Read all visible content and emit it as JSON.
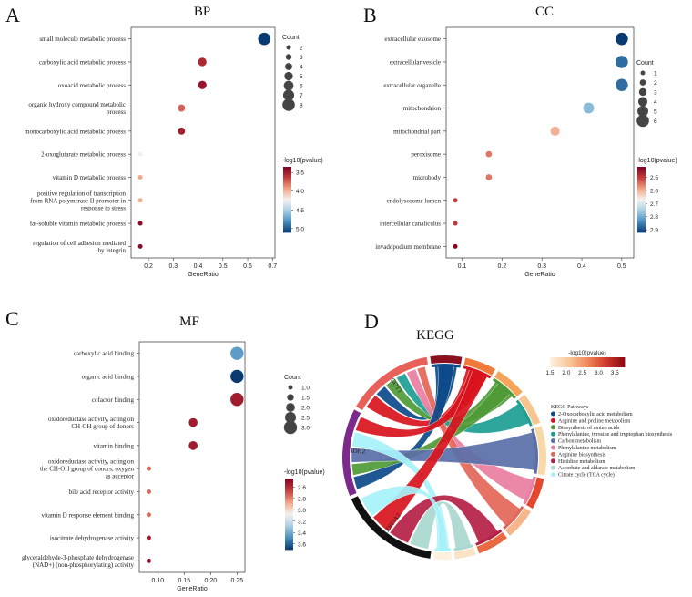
{
  "panels": {
    "A": {
      "letter": "A"
    },
    "B": {
      "letter": "B"
    },
    "C": {
      "letter": "C"
    },
    "D": {
      "letter": "D"
    }
  },
  "chart_data": [
    {
      "id": "BP",
      "type": "scatter",
      "title": "BP",
      "xlabel": "GeneRatio",
      "xlim": [
        0.13,
        0.71
      ],
      "xticks": [
        "0.2",
        "0.3",
        "0.4",
        "0.5",
        "0.6",
        "0.7"
      ],
      "xtick_values": [
        0.2,
        0.3,
        0.4,
        0.5,
        0.6,
        0.7
      ],
      "categories": [
        "small molecule metabolic process",
        "carboxylic acid metabolic process",
        "oxoacid metabolic process",
        [
          "organic hydroxy compound metabolic",
          "process"
        ],
        "monocarboxylic acid metabolic process",
        "2-oxoglutarate metabolic process",
        "vitamin D metabolic process",
        [
          "positive regulation of transcription",
          "from RNA polymerase II promoter in",
          "response to stress"
        ],
        "fat-soluble vitamin metabolic process",
        [
          "regulation of cell adhesion mediated",
          "by integrin"
        ]
      ],
      "x": [
        0.667,
        0.417,
        0.417,
        0.333,
        0.333,
        0.167,
        0.167,
        0.167,
        0.167,
        0.167
      ],
      "count": [
        8,
        5,
        5,
        4,
        4,
        2,
        2,
        2,
        2,
        2
      ],
      "neglog10p": [
        5.1,
        3.55,
        3.45,
        3.75,
        3.5,
        4.25,
        3.95,
        3.95,
        3.4,
        3.4
      ],
      "size_legend": {
        "title": "Count",
        "labels": [
          "2",
          "3",
          "4",
          "5",
          "6",
          "7",
          "8"
        ],
        "values": [
          2,
          3,
          4,
          5,
          6,
          7,
          8
        ]
      },
      "color_legend": {
        "title": "-log10(pvalue)",
        "labels": [
          "3.5",
          "4.0",
          "4.5",
          "5.0"
        ],
        "values": [
          3.5,
          4.0,
          4.5,
          5.0
        ],
        "range": [
          3.35,
          5.1
        ],
        "reversed": true
      }
    },
    {
      "id": "CC",
      "type": "scatter",
      "title": "CC",
      "xlabel": "GeneRatio",
      "xlim": [
        0.06,
        0.53
      ],
      "xticks": [
        "0.1",
        "0.2",
        "0.3",
        "0.4",
        "0.5"
      ],
      "xtick_values": [
        0.1,
        0.2,
        0.3,
        0.4,
        0.5
      ],
      "categories": [
        "extracellular exosome",
        "extracellular vesicle",
        "extracellular organelle",
        "mitochondrion",
        "mitochondrial part",
        "peroxisome",
        "microbody",
        "endolysosome lumen",
        "intercellular canaliculus",
        "invadopodium membrane"
      ],
      "x": [
        0.5,
        0.5,
        0.5,
        0.417,
        0.333,
        0.167,
        0.167,
        0.083,
        0.083,
        0.083
      ],
      "count": [
        6,
        6,
        6,
        5,
        4,
        2,
        2,
        1,
        1,
        1
      ],
      "neglog10p": [
        2.92,
        2.87,
        2.87,
        2.78,
        2.6,
        2.55,
        2.55,
        2.5,
        2.5,
        2.43
      ],
      "size_legend": {
        "title": "Count",
        "labels": [
          "1",
          "2",
          "3",
          "4",
          "5",
          "6"
        ],
        "values": [
          1,
          2,
          3,
          4,
          5,
          6
        ]
      },
      "color_legend": {
        "title": "-log10(pvalue)",
        "labels": [
          "2.5",
          "2.6",
          "2.7",
          "2.8",
          "2.9"
        ],
        "values": [
          2.5,
          2.6,
          2.7,
          2.8,
          2.9
        ],
        "range": [
          2.42,
          2.92
        ],
        "reversed": true
      }
    },
    {
      "id": "MF",
      "type": "scatter",
      "title": "MF",
      "xlabel": "GeneRatio",
      "xlim": [
        0.065,
        0.265
      ],
      "xticks": [
        "0.10",
        "0.15",
        "0.20",
        "0.25"
      ],
      "xtick_values": [
        0.1,
        0.15,
        0.2,
        0.25
      ],
      "categories": [
        "carboxylic acid binding",
        "organic acid binding",
        "cofactor binding",
        [
          "oxidoreductase activity, acting on",
          "CH-OH group of donors"
        ],
        "vitamin binding",
        [
          "oxidoreductase activity, acting on",
          "the CH-OH group of donors, oxygen",
          "as acceptor"
        ],
        "bile acid receptor activity",
        "vitamin D response element binding",
        "isocitrate dehydrogenase activity",
        [
          "glyceraldehyde-3-phosphate dehydrogenase",
          "(NAD+) (non-phosphorylating) activity"
        ]
      ],
      "x": [
        0.25,
        0.25,
        0.25,
        0.167,
        0.167,
        0.083,
        0.083,
        0.083,
        0.083,
        0.083
      ],
      "count": [
        3,
        3,
        3,
        2,
        2,
        1,
        1,
        1,
        1,
        1
      ],
      "neglog10p": [
        3.45,
        3.7,
        2.55,
        2.55,
        2.55,
        2.75,
        2.75,
        2.75,
        2.55,
        2.5
      ],
      "size_legend": {
        "title": "Count",
        "labels": [
          "1.0",
          "1.5",
          "2.0",
          "2.5",
          "3.0"
        ],
        "values": [
          1.0,
          1.5,
          2.0,
          2.5,
          3.0
        ]
      },
      "color_legend": {
        "title": "-log10(pvalue)",
        "labels": [
          "2.6",
          "2.8",
          "3.0",
          "3.2",
          "3.4",
          "3.6"
        ],
        "values": [
          2.6,
          2.8,
          3.0,
          3.2,
          3.4,
          3.6
        ],
        "range": [
          2.45,
          3.7
        ],
        "reversed": true
      }
    },
    {
      "id": "KEGG",
      "type": "chord",
      "title": "KEGG",
      "genes": [
        "GOT1",
        "IDH2",
        "ALDH3A2"
      ],
      "gradient_legend": {
        "title": "-log10(pvalue)",
        "labels": [
          "1.5",
          "2.0",
          "2.5",
          "3.0",
          "3.5"
        ],
        "values": [
          1.5,
          2.0,
          2.5,
          3.0,
          3.5
        ],
        "range": [
          1.5,
          3.8
        ]
      },
      "pathway_legend_title": "KEGG Pathways",
      "pathways": [
        {
          "name": "2-Oxocarboxylic acid metabolism",
          "color": "#0d4a8a"
        },
        {
          "name": "Arginine and proline metabolism",
          "color": "#d8131d"
        },
        {
          "name": "Biosynthesis of amino acids",
          "color": "#4f9a36"
        },
        {
          "name": "Phenylalanine, tyrosine and tryptophan biosynthesis",
          "color": "#1d9e92"
        },
        {
          "name": "Carbon metabolism",
          "color": "#5a6fa8"
        },
        {
          "name": "Phenylalanine metabolism",
          "color": "#e97ea0"
        },
        {
          "name": "Arginine biosynthesis",
          "color": "#e46658"
        },
        {
          "name": "Histidine metabolism",
          "color": "#b51f44"
        },
        {
          "name": "Ascorbate and aldarate metabolism",
          "color": "#a9d8cf"
        },
        {
          "name": "Citrate cycle (TCA cycle)",
          "color": "#a6f2fa"
        }
      ]
    }
  ]
}
